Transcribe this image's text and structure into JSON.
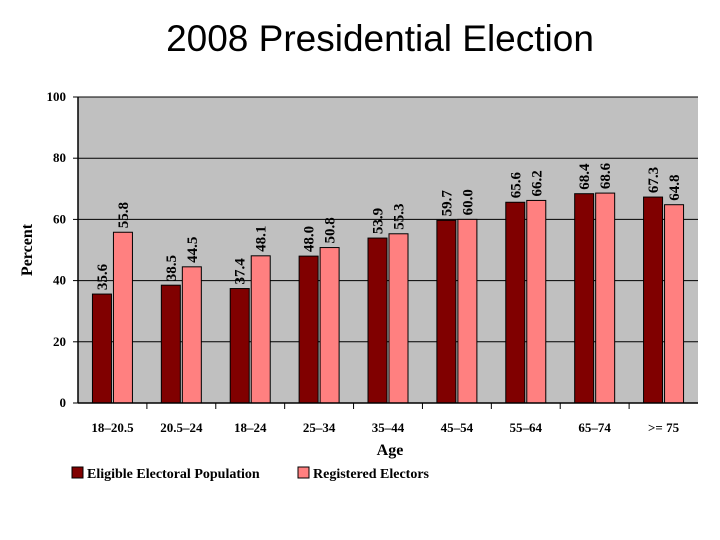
{
  "title": "2008 Presidential Election",
  "chart_data": {
    "type": "bar",
    "xlabel": "Age",
    "ylabel": "Percent",
    "ylim": [
      0,
      100
    ],
    "yticks": [
      0,
      20,
      40,
      60,
      80,
      100
    ],
    "grid": true,
    "legend_position": "bottom",
    "categories": [
      "18–20.5",
      "20.5–24",
      "18–24",
      "25–34",
      "35–44",
      "45–54",
      "55–64",
      "65–74",
      ">= 75"
    ],
    "series": [
      {
        "name": "Eligible Electoral Population",
        "color": "#800000",
        "values": [
          35.6,
          38.5,
          37.4,
          48.0,
          53.9,
          59.7,
          65.6,
          68.4,
          67.3
        ],
        "labels": [
          "35.6",
          "38.5",
          "37.4",
          "48.0",
          "53.9",
          "59.7",
          "65.6",
          "68.4",
          "67.3"
        ]
      },
      {
        "name": "Registered Electors",
        "color": "#ff8080",
        "values": [
          55.8,
          44.5,
          48.1,
          50.8,
          55.3,
          60.0,
          66.2,
          68.6,
          64.8
        ],
        "labels": [
          "55.8",
          "44.5",
          "48.1",
          "50.8",
          "55.3",
          "60.0",
          "66.2",
          "68.6",
          "64.8"
        ]
      }
    ],
    "plot_bg": "#c0c0c0"
  }
}
